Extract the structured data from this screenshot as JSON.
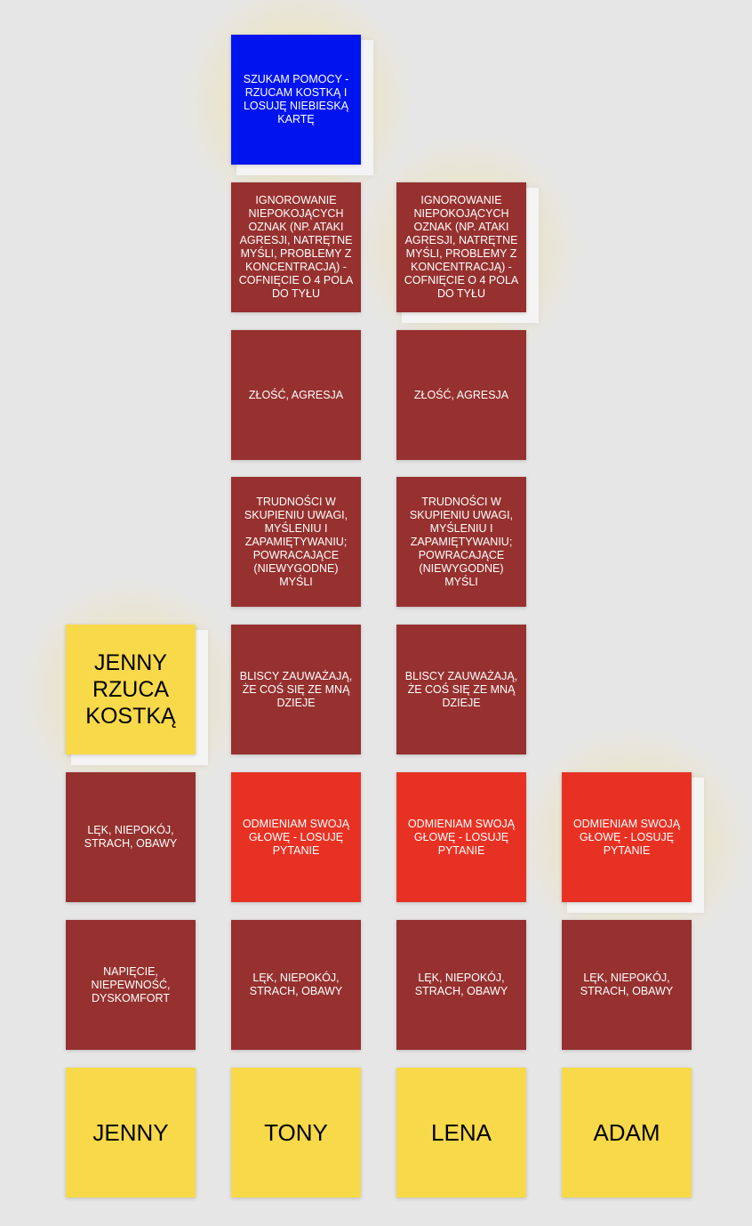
{
  "board": {
    "colors": {
      "background": "#e6e6e6",
      "dark_red": "#96312f",
      "bright_red": "#e73223",
      "blue": "#0015ee",
      "yellow": "#f8d94a"
    },
    "columns": [
      {
        "player": "JENNY",
        "cards": [
          {
            "text": "JENNY RZUCA KOSTKĄ",
            "color": "yellow",
            "highlighted": true
          },
          {
            "text": "LĘK, NIEPOKÓJ, STRACH, OBAWY",
            "color": "dark_red"
          },
          {
            "text": "NAPIĘCIE, NIEPEWNOŚĆ, DYSKOMFORT",
            "color": "dark_red"
          }
        ]
      },
      {
        "player": "TONY",
        "cards": [
          {
            "text": "SZUKAM POMOCY - RZUCAM KOSTKĄ I LOSUJĘ NIEBIESKĄ KARTĘ",
            "color": "blue",
            "highlighted": true
          },
          {
            "text": "IGNOROWANIE NIEPOKOJĄCYCH OZNAK (NP. ATAKI AGRESJI, NATRĘTNE MYŚLI, PROBLEMY Z KONCENTRACJĄ) - COFNIĘCIE O 4 POLA DO TYŁU",
            "color": "dark_red"
          },
          {
            "text": "ZŁOŚĆ, AGRESJA",
            "color": "dark_red"
          },
          {
            "text": "TRUDNOŚCI W SKUPIENIU UWAGI, MYŚLENIU I ZAPAMIĘTYWANIU; POWRACAJĄCE (NIEWYGODNE) MYŚLI",
            "color": "dark_red"
          },
          {
            "text": "BLISCY ZAUWAŻAJĄ, ŻE COŚ SIĘ ZE MNĄ DZIEJE",
            "color": "dark_red"
          },
          {
            "text": "ODMIENIAM SWOJĄ GŁOWĘ - LOSUJĘ PYTANIE",
            "color": "bright_red"
          },
          {
            "text": "LĘK, NIEPOKÓJ, STRACH, OBAWY",
            "color": "dark_red"
          }
        ]
      },
      {
        "player": "LENA",
        "cards": [
          {
            "text": "IGNOROWANIE NIEPOKOJĄCYCH OZNAK (NP. ATAKI AGRESJI, NATRĘTNE MYŚLI, PROBLEMY Z KONCENTRACJĄ) - COFNIĘCIE O 4 POLA DO TYŁU",
            "color": "dark_red",
            "highlighted": true
          },
          {
            "text": "ZŁOŚĆ, AGRESJA",
            "color": "dark_red"
          },
          {
            "text": "TRUDNOŚCI W SKUPIENIU UWAGI, MYŚLENIU I ZAPAMIĘTYWANIU; POWRACAJĄCE (NIEWYGODNE) MYŚLI",
            "color": "dark_red"
          },
          {
            "text": "BLISCY ZAUWAŻAJĄ, ŻE COŚ SIĘ ZE MNĄ DZIEJE",
            "color": "dark_red"
          },
          {
            "text": "ODMIENIAM SWOJĄ GŁOWĘ - LOSUJĘ PYTANIE",
            "color": "bright_red"
          },
          {
            "text": "LĘK, NIEPOKÓJ, STRACH, OBAWY",
            "color": "dark_red"
          }
        ]
      },
      {
        "player": "ADAM",
        "cards": [
          {
            "text": "ODMIENIAM SWOJĄ GŁOWĘ - LOSUJĘ PYTANIE",
            "color": "bright_red",
            "highlighted": true
          },
          {
            "text": "LĘK, NIEPOKÓJ, STRACH, OBAWY",
            "color": "dark_red"
          }
        ]
      }
    ]
  }
}
